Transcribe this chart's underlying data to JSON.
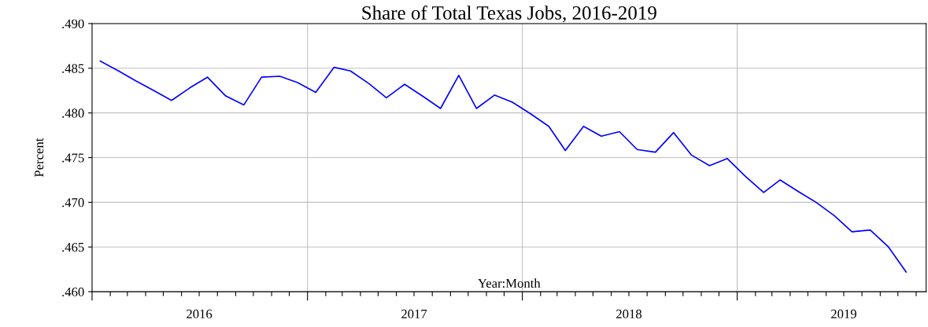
{
  "chart_data": {
    "type": "line",
    "title": "Share of Total Texas Jobs, 2016-2019",
    "xlabel": "Year:Month",
    "ylabel": "Percent",
    "x": [
      "2016-01-15",
      "2016-02-15",
      "2016-03-15",
      "2016-04-15",
      "2016-05-15",
      "2016-06-15",
      "2016-07-15",
      "2016-08-15",
      "2016-09-15",
      "2016-10-15",
      "2016-11-15",
      "2016-12-15",
      "2017-01-15",
      "2017-02-15",
      "2017-03-15",
      "2017-04-15",
      "2017-05-15",
      "2017-06-15",
      "2017-07-15",
      "2017-08-15",
      "2017-09-15",
      "2017-10-15",
      "2017-11-15",
      "2017-12-15",
      "2018-01-15",
      "2018-02-15",
      "2018-03-15",
      "2018-04-15",
      "2018-05-15",
      "2018-06-15",
      "2018-07-15",
      "2018-08-15",
      "2018-09-15",
      "2018-10-15",
      "2018-11-15",
      "2018-12-15",
      "2019-01-15",
      "2019-02-15",
      "2019-03-15",
      "2019-04-15",
      "2019-05-15",
      "2019-06-15",
      "2019-07-15",
      "2019-08-15",
      "2019-09-15",
      "2019-10-15"
    ],
    "series": [
      {
        "color": "#0000ff",
        "values": [
          0.4858,
          0.4847,
          0.4836,
          0.4825,
          0.4814,
          0.4828,
          0.484,
          0.4819,
          0.4809,
          0.484,
          0.4841,
          0.4834,
          0.4823,
          0.4851,
          0.4847,
          0.4833,
          0.4817,
          0.4832,
          0.4819,
          0.4805,
          0.4842,
          0.4805,
          0.482,
          0.4812,
          0.4799,
          0.4785,
          0.4758,
          0.4785,
          0.4774,
          0.4779,
          0.4759,
          0.4756,
          0.4778,
          0.4753,
          0.4741,
          0.4749,
          0.4729,
          0.4711,
          0.4725,
          0.4712,
          0.47,
          0.4685,
          0.4667,
          0.4669,
          0.465,
          0.4622
        ]
      }
    ],
    "xlim": [
      "2016-01-01",
      "2019-11-18"
    ],
    "xticks": [
      {
        "value": "2016-01-01",
        "label": null
      },
      {
        "value": "2016-02-01",
        "label": null
      },
      {
        "value": "2016-03-01",
        "label": null
      },
      {
        "value": "2016-04-01",
        "label": null
      },
      {
        "value": "2016-05-01",
        "label": null
      },
      {
        "value": "2016-06-01",
        "label": null
      },
      {
        "value": "2016-07-01",
        "label": "2016"
      },
      {
        "value": "2016-08-01",
        "label": null
      },
      {
        "value": "2016-09-01",
        "label": null
      },
      {
        "value": "2016-10-01",
        "label": null
      },
      {
        "value": "2016-11-01",
        "label": null
      },
      {
        "value": "2016-12-01",
        "label": null
      },
      {
        "value": "2017-01-01",
        "label": null
      },
      {
        "value": "2017-02-01",
        "label": null
      },
      {
        "value": "2017-03-01",
        "label": null
      },
      {
        "value": "2017-04-01",
        "label": null
      },
      {
        "value": "2017-05-01",
        "label": null
      },
      {
        "value": "2017-06-01",
        "label": null
      },
      {
        "value": "2017-07-01",
        "label": "2017"
      },
      {
        "value": "2017-08-01",
        "label": null
      },
      {
        "value": "2017-09-01",
        "label": null
      },
      {
        "value": "2017-10-01",
        "label": null
      },
      {
        "value": "2017-11-01",
        "label": null
      },
      {
        "value": "2017-12-01",
        "label": null
      },
      {
        "value": "2018-01-01",
        "label": null
      },
      {
        "value": "2018-02-01",
        "label": null
      },
      {
        "value": "2018-03-01",
        "label": null
      },
      {
        "value": "2018-04-01",
        "label": null
      },
      {
        "value": "2018-05-01",
        "label": null
      },
      {
        "value": "2018-06-01",
        "label": null
      },
      {
        "value": "2018-07-01",
        "label": "2018"
      },
      {
        "value": "2018-08-01",
        "label": null
      },
      {
        "value": "2018-09-01",
        "label": null
      },
      {
        "value": "2018-10-01",
        "label": null
      },
      {
        "value": "2018-11-01",
        "label": null
      },
      {
        "value": "2018-12-01",
        "label": null
      },
      {
        "value": "2019-01-01",
        "label": null
      },
      {
        "value": "2019-02-01",
        "label": null
      },
      {
        "value": "2019-03-01",
        "label": null
      },
      {
        "value": "2019-04-01",
        "label": null
      },
      {
        "value": "2019-05-01",
        "label": null
      },
      {
        "value": "2019-06-01",
        "label": null
      },
      {
        "value": "2019-07-01",
        "label": "2019"
      },
      {
        "value": "2019-08-01",
        "label": null
      },
      {
        "value": "2019-09-01",
        "label": null
      },
      {
        "value": "2019-10-01",
        "label": null
      },
      {
        "value": "2019-11-01",
        "label": null
      }
    ],
    "ylim": [
      0.46,
      0.49
    ],
    "yticks": [
      {
        "value": 0.46,
        "label": ".460"
      },
      {
        "value": 0.465,
        "label": ".465"
      },
      {
        "value": 0.47,
        "label": ".470"
      },
      {
        "value": 0.475,
        "label": ".475"
      },
      {
        "value": 0.48,
        "label": ".480"
      },
      {
        "value": 0.485,
        "label": ".485"
      },
      {
        "value": 0.49,
        "label": ".490"
      }
    ],
    "grid": "y",
    "ref_lines": [
      {
        "axis": "x",
        "value": "2017-01-01",
        "color": "#c0c0c0"
      },
      {
        "axis": "x",
        "value": "2018-01-01",
        "color": "#c0c0c0"
      },
      {
        "axis": "x",
        "value": "2019-01-01",
        "color": "#c0c0c0"
      }
    ],
    "marker": "none",
    "line_style": "solid",
    "legend": false
  }
}
